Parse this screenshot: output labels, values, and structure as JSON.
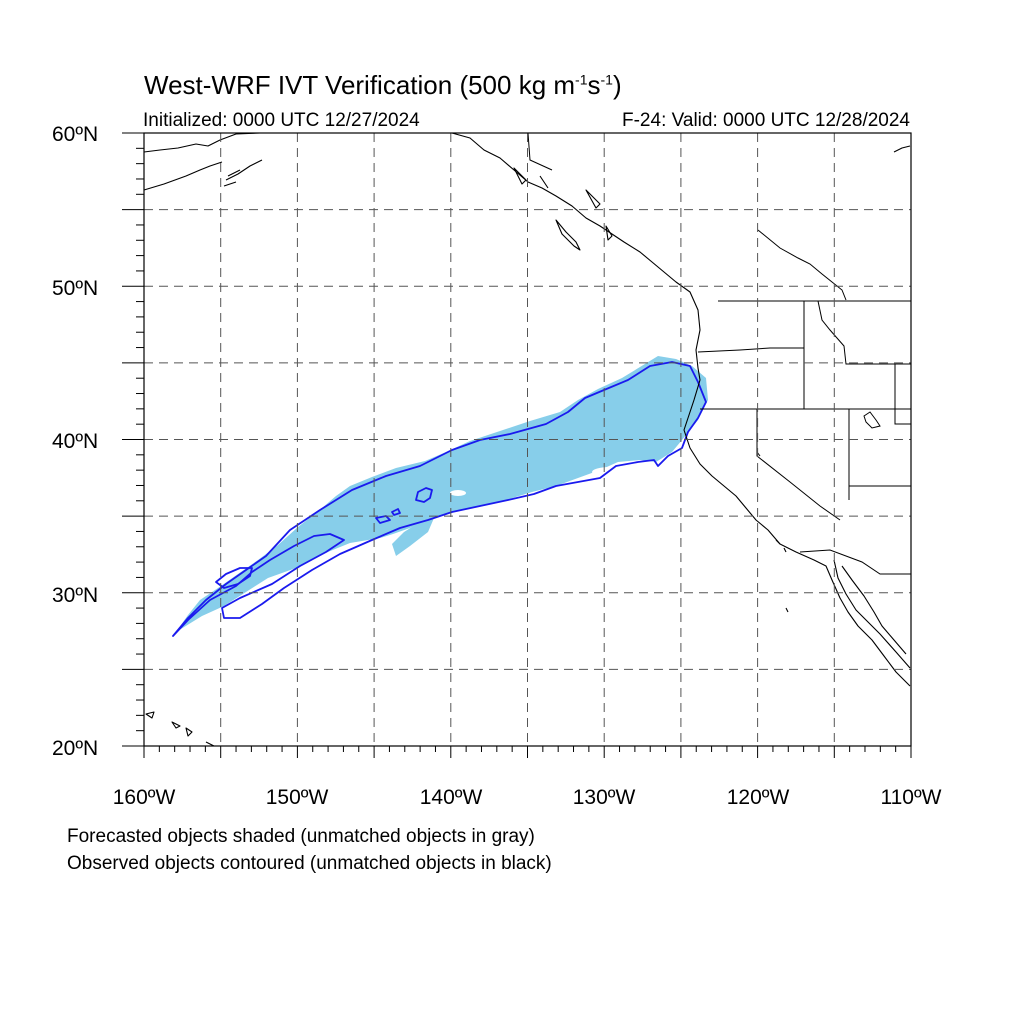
{
  "header": {
    "title_main": "West-WRF IVT Verification (500 kg m",
    "title_exp1": "-1",
    "title_mid": "s",
    "title_exp2": "-1",
    "title_end": ")",
    "initialized": "Initialized: 0000 UTC 12/27/2024",
    "valid": "F-24: Valid: 0000 UTC 12/28/2024"
  },
  "axes": {
    "lat_labels": [
      "60ºN",
      "50ºN",
      "40ºN",
      "30ºN",
      "20ºN"
    ],
    "lon_labels": [
      "160ºW",
      "150ºW",
      "140ºW",
      "130ºW",
      "120ºW",
      "110ºW"
    ]
  },
  "legend": {
    "line1": "Forecasted objects shaded (unmatched objects in gray)",
    "line2": "Observed objects contoured (unmatched objects in black)"
  },
  "colors": {
    "forecast_fill": "#87ceea",
    "observed_contour": "#1a1aee",
    "coastline": "#000000",
    "grid": "#555555"
  }
}
